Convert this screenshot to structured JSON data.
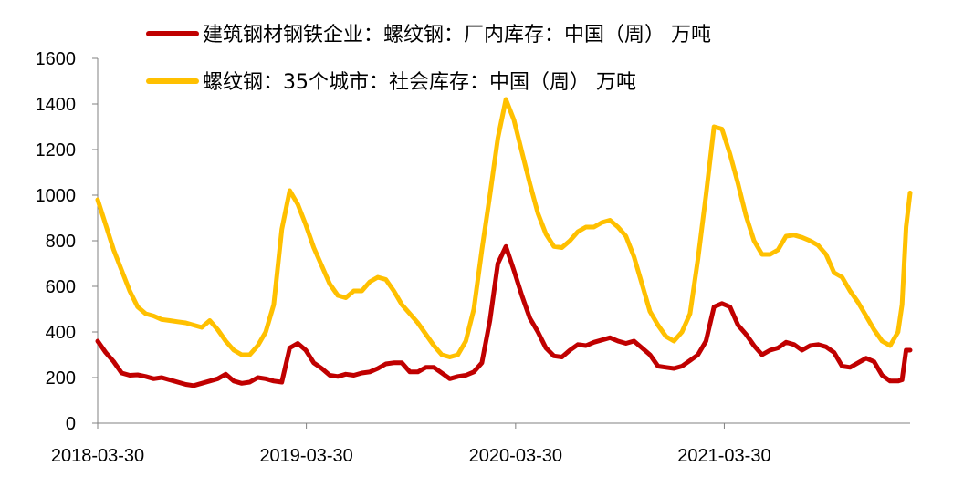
{
  "chart_data": {
    "type": "line",
    "title": "",
    "xlabel": "",
    "ylabel": "",
    "ylim": [
      0,
      1600
    ],
    "yticks": [
      0,
      200,
      400,
      600,
      800,
      1000,
      1200,
      1400,
      1600
    ],
    "xlim": [
      "2018-03-30",
      "2022-02-18"
    ],
    "xticks": [
      "2018-03-30",
      "2019-03-30",
      "2020-03-30",
      "2021-03-30"
    ],
    "grid": false,
    "legend_position": "top",
    "series": [
      {
        "name": "建筑钢材钢铁企业：螺纹钢：厂内库存：中国（周） 万吨",
        "color": "#C00000",
        "points": [
          [
            "2018-03-30",
            360
          ],
          [
            "2018-04-13",
            310
          ],
          [
            "2018-04-27",
            270
          ],
          [
            "2018-05-11",
            220
          ],
          [
            "2018-05-25",
            210
          ],
          [
            "2018-06-08",
            212
          ],
          [
            "2018-06-22",
            205
          ],
          [
            "2018-07-06",
            195
          ],
          [
            "2018-07-20",
            200
          ],
          [
            "2018-08-03",
            190
          ],
          [
            "2018-08-17",
            180
          ],
          [
            "2018-08-31",
            170
          ],
          [
            "2018-09-14",
            165
          ],
          [
            "2018-09-28",
            175
          ],
          [
            "2018-10-12",
            185
          ],
          [
            "2018-10-26",
            195
          ],
          [
            "2018-11-09",
            215
          ],
          [
            "2018-11-23",
            185
          ],
          [
            "2018-12-07",
            175
          ],
          [
            "2018-12-21",
            180
          ],
          [
            "2019-01-04",
            200
          ],
          [
            "2019-01-18",
            195
          ],
          [
            "2019-02-01",
            185
          ],
          [
            "2019-02-15",
            180
          ],
          [
            "2019-03-01",
            330
          ],
          [
            "2019-03-15",
            350
          ],
          [
            "2019-03-29",
            320
          ],
          [
            "2019-04-12",
            265
          ],
          [
            "2019-04-26",
            240
          ],
          [
            "2019-05-10",
            210
          ],
          [
            "2019-05-24",
            205
          ],
          [
            "2019-06-07",
            215
          ],
          [
            "2019-06-21",
            210
          ],
          [
            "2019-07-05",
            220
          ],
          [
            "2019-07-19",
            225
          ],
          [
            "2019-08-02",
            240
          ],
          [
            "2019-08-16",
            260
          ],
          [
            "2019-08-30",
            265
          ],
          [
            "2019-09-13",
            265
          ],
          [
            "2019-09-27",
            225
          ],
          [
            "2019-10-11",
            225
          ],
          [
            "2019-10-25",
            245
          ],
          [
            "2019-11-08",
            245
          ],
          [
            "2019-11-22",
            220
          ],
          [
            "2019-12-06",
            195
          ],
          [
            "2019-12-20",
            205
          ],
          [
            "2020-01-03",
            210
          ],
          [
            "2020-01-17",
            225
          ],
          [
            "2020-01-31",
            265
          ],
          [
            "2020-02-14",
            450
          ],
          [
            "2020-02-28",
            700
          ],
          [
            "2020-03-13",
            775
          ],
          [
            "2020-03-27",
            670
          ],
          [
            "2020-04-10",
            560
          ],
          [
            "2020-04-24",
            460
          ],
          [
            "2020-05-08",
            400
          ],
          [
            "2020-05-22",
            330
          ],
          [
            "2020-06-05",
            295
          ],
          [
            "2020-06-19",
            290
          ],
          [
            "2020-07-03",
            320
          ],
          [
            "2020-07-17",
            345
          ],
          [
            "2020-07-31",
            340
          ],
          [
            "2020-08-14",
            355
          ],
          [
            "2020-08-28",
            365
          ],
          [
            "2020-09-11",
            375
          ],
          [
            "2020-09-25",
            360
          ],
          [
            "2020-10-09",
            350
          ],
          [
            "2020-10-23",
            360
          ],
          [
            "2020-11-06",
            330
          ],
          [
            "2020-11-20",
            300
          ],
          [
            "2020-12-04",
            250
          ],
          [
            "2020-12-18",
            245
          ],
          [
            "2021-01-01",
            240
          ],
          [
            "2021-01-15",
            250
          ],
          [
            "2021-01-29",
            275
          ],
          [
            "2021-02-12",
            300
          ],
          [
            "2021-02-26",
            360
          ],
          [
            "2021-03-12",
            510
          ],
          [
            "2021-03-26",
            525
          ],
          [
            "2021-04-09",
            510
          ],
          [
            "2021-04-23",
            430
          ],
          [
            "2021-05-07",
            390
          ],
          [
            "2021-05-21",
            340
          ],
          [
            "2021-06-04",
            300
          ],
          [
            "2021-06-18",
            320
          ],
          [
            "2021-07-02",
            330
          ],
          [
            "2021-07-16",
            355
          ],
          [
            "2021-07-30",
            345
          ],
          [
            "2021-08-13",
            320
          ],
          [
            "2021-08-27",
            340
          ],
          [
            "2021-09-10",
            345
          ],
          [
            "2021-09-24",
            335
          ],
          [
            "2021-10-08",
            310
          ],
          [
            "2021-10-22",
            250
          ],
          [
            "2021-11-05",
            245
          ],
          [
            "2021-11-19",
            265
          ],
          [
            "2021-12-03",
            285
          ],
          [
            "2021-12-17",
            270
          ],
          [
            "2021-12-31",
            210
          ],
          [
            "2022-01-14",
            185
          ],
          [
            "2022-01-28",
            185
          ],
          [
            "2022-02-04",
            190
          ],
          [
            "2022-02-11",
            320
          ],
          [
            "2022-02-18",
            320
          ]
        ]
      },
      {
        "name": "螺纹钢：35个城市：社会库存：中国（周） 万吨",
        "color": "#FFC000",
        "points": [
          [
            "2018-03-30",
            980
          ],
          [
            "2018-04-13",
            870
          ],
          [
            "2018-04-27",
            760
          ],
          [
            "2018-05-11",
            670
          ],
          [
            "2018-05-25",
            580
          ],
          [
            "2018-06-08",
            510
          ],
          [
            "2018-06-22",
            480
          ],
          [
            "2018-07-06",
            470
          ],
          [
            "2018-07-20",
            455
          ],
          [
            "2018-08-03",
            450
          ],
          [
            "2018-08-17",
            445
          ],
          [
            "2018-08-31",
            440
          ],
          [
            "2018-09-14",
            430
          ],
          [
            "2018-09-28",
            420
          ],
          [
            "2018-10-12",
            450
          ],
          [
            "2018-10-26",
            410
          ],
          [
            "2018-11-09",
            360
          ],
          [
            "2018-11-23",
            320
          ],
          [
            "2018-12-07",
            300
          ],
          [
            "2018-12-21",
            300
          ],
          [
            "2019-01-04",
            340
          ],
          [
            "2019-01-18",
            400
          ],
          [
            "2019-02-01",
            520
          ],
          [
            "2019-02-15",
            850
          ],
          [
            "2019-03-01",
            1020
          ],
          [
            "2019-03-15",
            960
          ],
          [
            "2019-03-29",
            870
          ],
          [
            "2019-04-12",
            770
          ],
          [
            "2019-04-26",
            690
          ],
          [
            "2019-05-10",
            610
          ],
          [
            "2019-05-24",
            560
          ],
          [
            "2019-06-07",
            550
          ],
          [
            "2019-06-21",
            580
          ],
          [
            "2019-07-05",
            580
          ],
          [
            "2019-07-19",
            620
          ],
          [
            "2019-08-02",
            640
          ],
          [
            "2019-08-16",
            630
          ],
          [
            "2019-08-30",
            580
          ],
          [
            "2019-09-13",
            520
          ],
          [
            "2019-09-27",
            480
          ],
          [
            "2019-10-11",
            440
          ],
          [
            "2019-10-25",
            390
          ],
          [
            "2019-11-08",
            340
          ],
          [
            "2019-11-22",
            300
          ],
          [
            "2019-12-06",
            290
          ],
          [
            "2019-12-20",
            300
          ],
          [
            "2020-01-03",
            360
          ],
          [
            "2020-01-17",
            500
          ],
          [
            "2020-01-31",
            760
          ],
          [
            "2020-02-14",
            1000
          ],
          [
            "2020-02-28",
            1250
          ],
          [
            "2020-03-13",
            1420
          ],
          [
            "2020-03-27",
            1330
          ],
          [
            "2020-04-10",
            1190
          ],
          [
            "2020-04-24",
            1050
          ],
          [
            "2020-05-08",
            920
          ],
          [
            "2020-05-22",
            830
          ],
          [
            "2020-06-05",
            775
          ],
          [
            "2020-06-19",
            770
          ],
          [
            "2020-07-03",
            800
          ],
          [
            "2020-07-17",
            840
          ],
          [
            "2020-07-31",
            860
          ],
          [
            "2020-08-14",
            860
          ],
          [
            "2020-08-28",
            880
          ],
          [
            "2020-09-11",
            890
          ],
          [
            "2020-09-25",
            860
          ],
          [
            "2020-10-09",
            820
          ],
          [
            "2020-10-23",
            730
          ],
          [
            "2020-11-06",
            610
          ],
          [
            "2020-11-20",
            490
          ],
          [
            "2020-12-04",
            430
          ],
          [
            "2020-12-18",
            380
          ],
          [
            "2021-01-01",
            360
          ],
          [
            "2021-01-15",
            400
          ],
          [
            "2021-01-29",
            480
          ],
          [
            "2021-02-12",
            720
          ],
          [
            "2021-02-26",
            1000
          ],
          [
            "2021-03-12",
            1300
          ],
          [
            "2021-03-26",
            1290
          ],
          [
            "2021-04-09",
            1180
          ],
          [
            "2021-04-23",
            1050
          ],
          [
            "2021-05-07",
            910
          ],
          [
            "2021-05-21",
            800
          ],
          [
            "2021-06-04",
            740
          ],
          [
            "2021-06-18",
            740
          ],
          [
            "2021-07-02",
            760
          ],
          [
            "2021-07-16",
            820
          ],
          [
            "2021-07-30",
            825
          ],
          [
            "2021-08-13",
            815
          ],
          [
            "2021-08-27",
            800
          ],
          [
            "2021-09-10",
            780
          ],
          [
            "2021-09-24",
            740
          ],
          [
            "2021-10-08",
            660
          ],
          [
            "2021-10-22",
            640
          ],
          [
            "2021-11-05",
            580
          ],
          [
            "2021-11-19",
            530
          ],
          [
            "2021-12-03",
            470
          ],
          [
            "2021-12-17",
            410
          ],
          [
            "2021-12-31",
            360
          ],
          [
            "2022-01-14",
            340
          ],
          [
            "2022-01-28",
            400
          ],
          [
            "2022-02-04",
            520
          ],
          [
            "2022-02-11",
            860
          ],
          [
            "2022-02-18",
            1010
          ]
        ]
      }
    ]
  }
}
